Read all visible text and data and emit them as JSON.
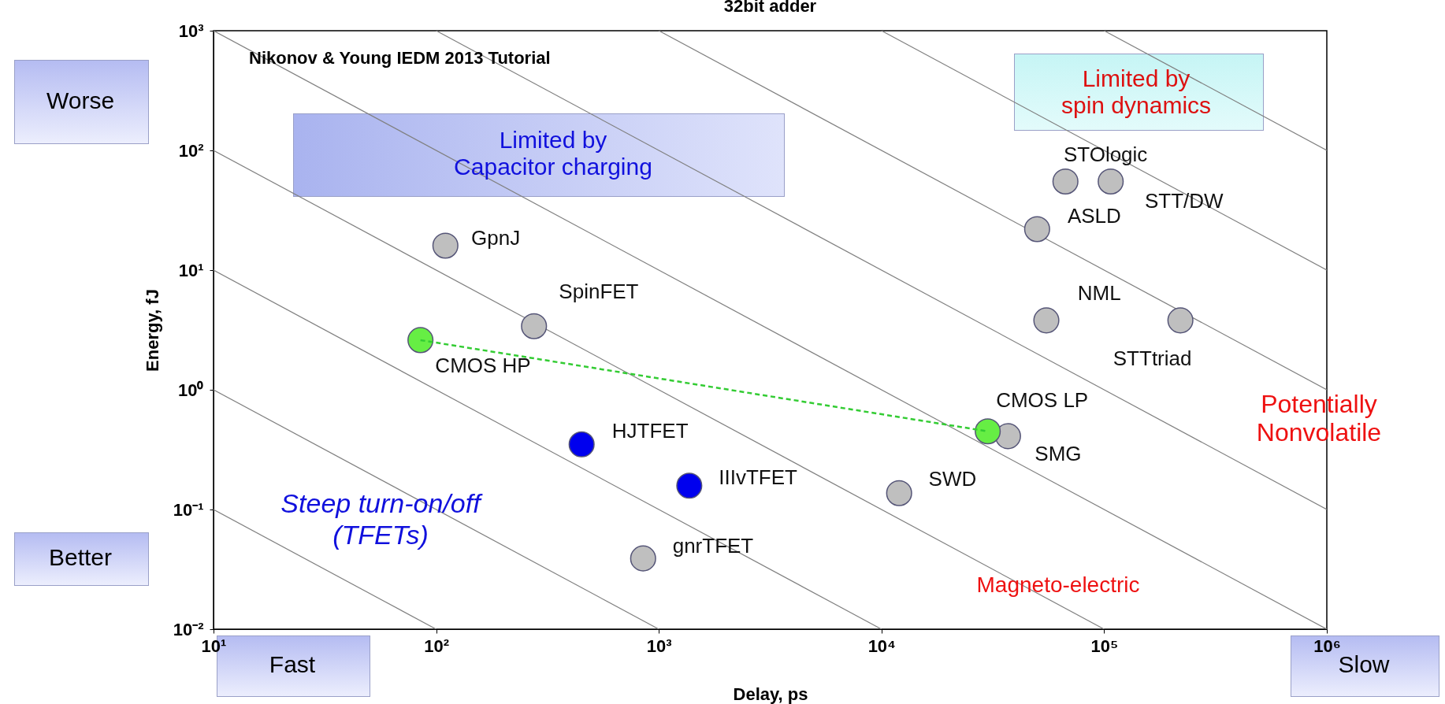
{
  "chart_data": {
    "type": "scatter",
    "title": "32bit adder",
    "xlabel": "Delay, ps",
    "ylabel": "Energy, fJ",
    "log": "xy",
    "grid": false,
    "xlim": [
      10,
      1000000
    ],
    "ylim": [
      0.01,
      1000
    ],
    "xticks": [
      {
        "value": 10,
        "label": "10¹"
      },
      {
        "value": 100,
        "label": "10²"
      },
      {
        "value": 1000,
        "label": "10³"
      },
      {
        "value": 10000,
        "label": "10⁴"
      },
      {
        "value": 100000,
        "label": "10⁵"
      },
      {
        "value": 1000000,
        "label": "10⁶"
      }
    ],
    "yticks": [
      {
        "value": 0.01,
        "label": "10⁻²"
      },
      {
        "value": 0.1,
        "label": "10⁻¹"
      },
      {
        "value": 1,
        "label": "10⁰"
      },
      {
        "value": 10,
        "label": "10¹"
      },
      {
        "value": 100,
        "label": "10²"
      },
      {
        "value": 1000,
        "label": "10³"
      }
    ],
    "series": [
      {
        "type": "line",
        "color": "#808080",
        "x": [
          10,
          100
        ],
        "values": [
          0.1,
          0.01
        ]
      },
      {
        "type": "line",
        "color": "#808080",
        "x": [
          10,
          1000
        ],
        "values": [
          1,
          0.01
        ]
      },
      {
        "type": "line",
        "color": "#808080",
        "x": [
          10,
          10000
        ],
        "values": [
          10,
          0.01
        ]
      },
      {
        "type": "line",
        "color": "#808080",
        "x": [
          10,
          100000
        ],
        "values": [
          100,
          0.01
        ]
      },
      {
        "type": "line",
        "color": "#808080",
        "x": [
          10,
          1000000
        ],
        "values": [
          1000,
          0.01
        ]
      },
      {
        "type": "line",
        "color": "#808080",
        "x": [
          100,
          1000000
        ],
        "values": [
          1000,
          0.1
        ]
      },
      {
        "type": "line",
        "color": "#808080",
        "x": [
          1000,
          1000000
        ],
        "values": [
          1000,
          1
        ]
      },
      {
        "type": "line",
        "color": "#808080",
        "x": [
          10000,
          1000000
        ],
        "values": [
          1000,
          10
        ]
      },
      {
        "type": "line",
        "color": "#808080",
        "x": [
          100000,
          1000000
        ],
        "values": [
          1000,
          100
        ]
      },
      {
        "marker": "circle",
        "color": "#bfbfbf",
        "x": [
          110,
          275,
          850,
          12000,
          37000,
          55000,
          220000,
          50000,
          67000,
          107000
        ],
        "values": [
          16,
          3.4,
          0.039,
          0.137,
          0.41,
          3.8,
          3.8,
          22,
          55,
          55
        ]
      },
      {
        "marker": "circle",
        "color": "#66ee44",
        "x": [
          85,
          30000
        ],
        "values": [
          2.6,
          0.45
        ]
      },
      {
        "marker": "circle",
        "color": "#0000ee",
        "x": [
          450,
          1370
        ],
        "values": [
          0.35,
          0.158
        ]
      },
      {
        "type": "line",
        "color": "#33cc33",
        "line_style": "dashed",
        "x": [
          85,
          30000
        ],
        "values": [
          2.6,
          0.45
        ]
      }
    ],
    "annotations": [
      {
        "text": "GpnJ",
        "x": 110,
        "y": 16
      },
      {
        "text": "SpinFET",
        "x": 275,
        "y": 3.4
      },
      {
        "text": "CMOS HP",
        "x": 85,
        "y": 2.6
      },
      {
        "text": "HJTFET",
        "x": 450,
        "y": 0.35
      },
      {
        "text": "IIIvTFET",
        "x": 1370,
        "y": 0.158
      },
      {
        "text": "gnrTFET",
        "x": 850,
        "y": 0.039
      },
      {
        "text": "SWD",
        "x": 12000,
        "y": 0.137
      },
      {
        "text": "CMOS LP",
        "x": 30000,
        "y": 0.45
      },
      {
        "text": "SMG",
        "x": 37000,
        "y": 0.41
      },
      {
        "text": "NML",
        "x": 55000,
        "y": 3.8
      },
      {
        "text": "STTtriad",
        "x": 220000,
        "y": 3.8
      },
      {
        "text": "ASLD",
        "x": 50000,
        "y": 22
      },
      {
        "text": "STOlogic",
        "x": 67000,
        "y": 55
      },
      {
        "text": "STT/DW",
        "x": 107000,
        "y": 55
      },
      "Nikonov & Young IEDM 2013 Tutorial",
      "Limited by\nCapacitor charging",
      "Limited by\nspin dynamics",
      "Steep turn-on/off\n(TFETs)",
      "Potentially\nNonvolatile",
      "Magneto-electric",
      "Worse",
      "Better",
      "Fast",
      "Slow"
    ]
  }
}
